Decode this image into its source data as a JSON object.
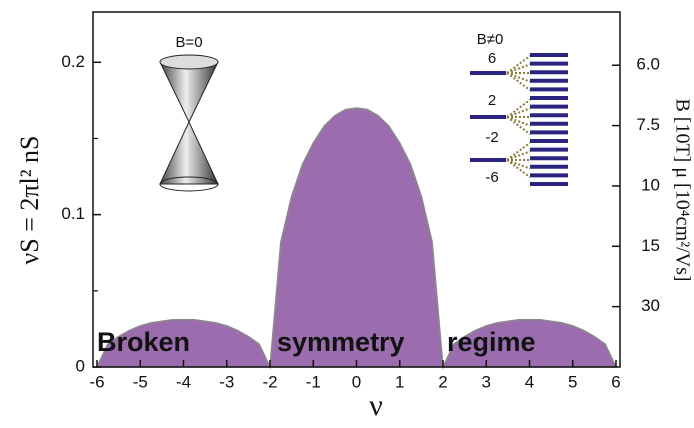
{
  "chart_data": {
    "type": "area",
    "x": [
      -6,
      -5.75,
      -5.5,
      -5.25,
      -5,
      -4.75,
      -4.5,
      -4.25,
      -4,
      -3.75,
      -3.5,
      -3.25,
      -3,
      -2.75,
      -2.5,
      -2.25,
      -2,
      -1.75,
      -1.5,
      -1.25,
      -1,
      -0.75,
      -0.5,
      -0.25,
      0,
      0.25,
      0.5,
      0.75,
      1,
      1.25,
      1.5,
      1.75,
      2,
      2.25,
      2.5,
      2.75,
      3,
      3.25,
      3.5,
      3.75,
      4,
      4.25,
      4.5,
      4.75,
      5,
      5.25,
      5.5,
      5.75,
      6
    ],
    "series": [
      {
        "color": "#9b6dae",
        "edge_color": "#8a8a8a",
        "values": [
          0,
          0.015,
          0.02,
          0.024,
          0.027,
          0.029,
          0.03,
          0.031,
          0.031,
          0.031,
          0.03,
          0.029,
          0.027,
          0.024,
          0.02,
          0.015,
          0,
          0.082,
          0.112,
          0.133,
          0.147,
          0.158,
          0.165,
          0.169,
          0.17,
          0.169,
          0.165,
          0.158,
          0.147,
          0.133,
          0.112,
          0.082,
          0,
          0.015,
          0.02,
          0.024,
          0.027,
          0.029,
          0.03,
          0.031,
          0.031,
          0.031,
          0.03,
          0.029,
          0.027,
          0.024,
          0.02,
          0.015,
          0
        ]
      }
    ],
    "xlim": [
      -6,
      6
    ],
    "xticks": [
      -6,
      -5,
      -4,
      -3,
      -2,
      -1,
      0,
      1,
      2,
      3,
      4,
      5,
      6
    ],
    "ylim": [
      0,
      0.233
    ],
    "yticks": [
      0,
      0.1,
      0.2
    ],
    "yminorticks": [
      0.05,
      0.15
    ],
    "y2scale": "reciprocal",
    "y2lim": [
      null,
      5.1
    ],
    "y2ticks": [
      {
        "value": 6,
        "label": "6.0"
      },
      7.5,
      10,
      15,
      30
    ],
    "xlabel": "ν",
    "ylabel": "νS = 2πl² nS",
    "y2label": "B [10T] μ [10⁴cm²/Vs]",
    "annotations": [
      "Broken",
      "symmetry",
      "regime",
      "B=0",
      "B≠0"
    ],
    "ll_labels": [
      "6",
      "2",
      "-2",
      "-6"
    ]
  }
}
